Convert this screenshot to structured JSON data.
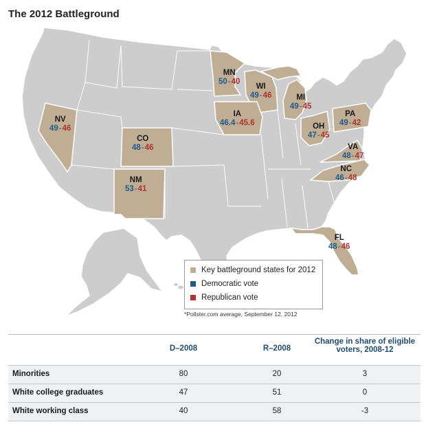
{
  "title": "The 2012 Battleground",
  "legend": {
    "items": [
      {
        "label": "Key battleground states for 2012",
        "color": "#bfae93"
      },
      {
        "label": "Democratic vote",
        "color": "#1e5b8a"
      },
      {
        "label": "Republican vote",
        "color": "#b0312d"
      }
    ]
  },
  "footnote": "*Pollster.com average, September 12, 2012",
  "colors": {
    "land": "#cdcdcd",
    "battleground": "#bfae93",
    "border": "#ffffff",
    "dem": "#1e5b8a",
    "rep": "#b0312d"
  },
  "states": [
    {
      "abbr": "NV",
      "dem": "49",
      "rep": "46"
    },
    {
      "abbr": "CO",
      "dem": "48",
      "rep": "46"
    },
    {
      "abbr": "NM",
      "dem": "53",
      "rep": "41"
    },
    {
      "abbr": "MN",
      "dem": "50",
      "rep": "40"
    },
    {
      "abbr": "WI",
      "dem": "49",
      "rep": "46"
    },
    {
      "abbr": "IA",
      "dem": "46.4",
      "rep": "45.6"
    },
    {
      "abbr": "MI",
      "dem": "49",
      "rep": "45"
    },
    {
      "abbr": "OH",
      "dem": "47",
      "rep": "45"
    },
    {
      "abbr": "PA",
      "dem": "49",
      "rep": "42"
    },
    {
      "abbr": "VA",
      "dem": "48",
      "rep": "47"
    },
    {
      "abbr": "NC",
      "dem": "46",
      "rep": "48"
    },
    {
      "abbr": "FL",
      "dem": "48",
      "rep": "46"
    }
  ],
  "table": {
    "headers": [
      "",
      "D–2008",
      "R–2008",
      "Change in share of eligible voters, 2008-12"
    ],
    "rows": [
      {
        "label": "Minorities",
        "d": "80",
        "r": "20",
        "change": "3"
      },
      {
        "label": "White college graduates",
        "d": "47",
        "r": "51",
        "change": "0"
      },
      {
        "label": "White working class",
        "d": "40",
        "r": "58",
        "change": "-3"
      }
    ]
  }
}
